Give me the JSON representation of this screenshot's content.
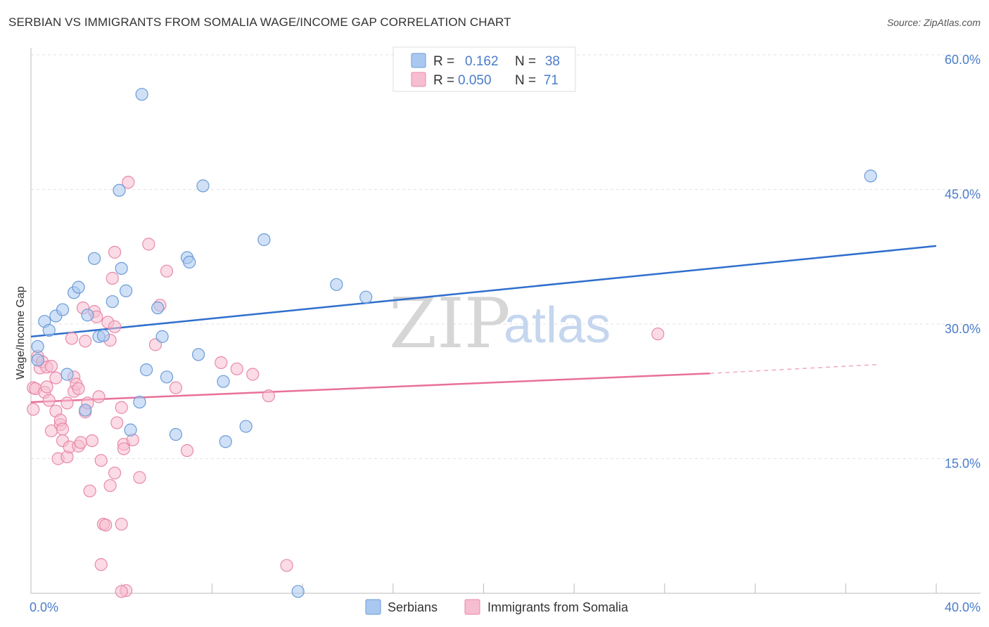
{
  "header": {
    "title": "SERBIAN VS IMMIGRANTS FROM SOMALIA WAGE/INCOME GAP CORRELATION CHART",
    "source": "Source: ZipAtlas.com"
  },
  "watermark": {
    "zip": "ZIP",
    "atlas": "atlas"
  },
  "colors": {
    "serbians_fill": "#a9c8f0",
    "serbians_stroke": "#6a9bd8",
    "serbians_line": "#2f6fcc",
    "somalia_fill": "#f7bdd0",
    "somalia_stroke": "#e889a8",
    "somalia_line": "#e8709a",
    "grid": "#e2e2e2",
    "axis_text": "#4a7cc9"
  },
  "legend": {
    "rows": [
      {
        "r_label": "R =",
        "r_value": "0.162",
        "n_label": "N =",
        "n_value": "38"
      },
      {
        "r_label": "R =",
        "r_value": "0.050",
        "n_label": "N =",
        "n_value": "71"
      }
    ]
  },
  "bottom_legend": {
    "serbians": "Serbians",
    "somalia": "Immigrants from Somalia"
  },
  "chart_data": {
    "type": "scatter",
    "title": "SERBIAN VS IMMIGRANTS FROM SOMALIA WAGE/INCOME GAP CORRELATION CHART",
    "xlabel": "",
    "ylabel": "Wage/Income Gap",
    "xlim": [
      0,
      40
    ],
    "ylim": [
      0,
      60
    ],
    "x_tick_labels": [
      {
        "value": 0,
        "label": "0.0%"
      },
      {
        "value": 40,
        "label": "40.0%"
      }
    ],
    "y_tick_labels": [
      {
        "value": 15,
        "label": "15.0%"
      },
      {
        "value": 30,
        "label": "30.0%"
      },
      {
        "value": 45,
        "label": "45.0%"
      },
      {
        "value": 60,
        "label": "60.0%"
      }
    ],
    "x_minor_ticks": [
      0,
      4,
      8,
      12,
      16,
      20,
      24,
      28,
      32,
      36,
      40
    ],
    "grid": true,
    "series": [
      {
        "name": "Serbians",
        "points": [
          [
            0.3,
            27.5
          ],
          [
            0.3,
            26.0
          ],
          [
            0.6,
            30.3
          ],
          [
            0.8,
            29.3
          ],
          [
            1.1,
            30.9
          ],
          [
            1.4,
            31.6
          ],
          [
            1.6,
            24.4
          ],
          [
            1.9,
            33.5
          ],
          [
            2.1,
            34.1
          ],
          [
            2.5,
            31.0
          ],
          [
            2.8,
            37.3
          ],
          [
            3.0,
            28.6
          ],
          [
            3.2,
            28.7
          ],
          [
            3.6,
            32.5
          ],
          [
            3.9,
            44.9
          ],
          [
            4.0,
            36.2
          ],
          [
            4.2,
            33.7
          ],
          [
            4.4,
            18.2
          ],
          [
            4.8,
            21.3
          ],
          [
            4.9,
            55.6
          ],
          [
            5.1,
            24.9
          ],
          [
            5.6,
            31.8
          ],
          [
            5.8,
            28.6
          ],
          [
            6.0,
            24.1
          ],
          [
            6.4,
            17.7
          ],
          [
            6.9,
            37.4
          ],
          [
            7.0,
            36.9
          ],
          [
            7.4,
            26.6
          ],
          [
            7.6,
            45.4
          ],
          [
            8.5,
            23.6
          ],
          [
            8.6,
            16.9
          ],
          [
            9.5,
            18.6
          ],
          [
            10.3,
            39.4
          ],
          [
            11.8,
            0.2
          ],
          [
            13.5,
            34.4
          ],
          [
            14.8,
            33.0
          ],
          [
            37.1,
            46.5
          ],
          [
            2.4,
            20.4
          ]
        ],
        "trend": {
          "x": [
            0,
            40
          ],
          "y": [
            28.6,
            38.7
          ]
        }
      },
      {
        "name": "Immigrants from Somalia",
        "points": [
          [
            0.1,
            22.9
          ],
          [
            0.1,
            20.5
          ],
          [
            0.2,
            22.8
          ],
          [
            0.3,
            26.4
          ],
          [
            0.4,
            25.1
          ],
          [
            0.5,
            25.8
          ],
          [
            0.6,
            22.4
          ],
          [
            0.7,
            25.2
          ],
          [
            0.7,
            23.0
          ],
          [
            0.8,
            21.5
          ],
          [
            0.9,
            25.3
          ],
          [
            0.9,
            18.1
          ],
          [
            1.1,
            24.0
          ],
          [
            1.1,
            20.3
          ],
          [
            1.2,
            15.0
          ],
          [
            1.3,
            18.8
          ],
          [
            1.3,
            19.3
          ],
          [
            1.4,
            18.3
          ],
          [
            1.4,
            17.0
          ],
          [
            1.6,
            21.2
          ],
          [
            1.6,
            15.2
          ],
          [
            1.7,
            16.3
          ],
          [
            1.8,
            28.4
          ],
          [
            1.9,
            24.1
          ],
          [
            1.9,
            22.5
          ],
          [
            2.0,
            23.3
          ],
          [
            2.1,
            22.8
          ],
          [
            2.1,
            16.4
          ],
          [
            2.2,
            16.8
          ],
          [
            2.3,
            31.8
          ],
          [
            2.4,
            20.2
          ],
          [
            2.4,
            28.1
          ],
          [
            2.5,
            21.2
          ],
          [
            2.6,
            11.4
          ],
          [
            2.7,
            17.0
          ],
          [
            2.8,
            31.4
          ],
          [
            2.9,
            30.8
          ],
          [
            3.0,
            21.9
          ],
          [
            3.1,
            3.2
          ],
          [
            3.1,
            14.8
          ],
          [
            3.2,
            7.7
          ],
          [
            3.3,
            7.6
          ],
          [
            3.4,
            30.2
          ],
          [
            3.5,
            28.2
          ],
          [
            3.5,
            12.0
          ],
          [
            3.6,
            35.1
          ],
          [
            3.7,
            29.7
          ],
          [
            3.7,
            13.4
          ],
          [
            3.7,
            38.0
          ],
          [
            3.8,
            19.0
          ],
          [
            4.0,
            20.7
          ],
          [
            4.0,
            7.7
          ],
          [
            4.1,
            16.6
          ],
          [
            4.1,
            16.1
          ],
          [
            4.2,
            0.3
          ],
          [
            4.3,
            45.8
          ],
          [
            4.5,
            17.1
          ],
          [
            4.8,
            12.9
          ],
          [
            5.2,
            38.9
          ],
          [
            5.5,
            27.7
          ],
          [
            5.7,
            32.1
          ],
          [
            6.0,
            35.9
          ],
          [
            6.4,
            22.9
          ],
          [
            6.9,
            15.9
          ],
          [
            8.4,
            25.7
          ],
          [
            9.1,
            25.0
          ],
          [
            9.8,
            24.4
          ],
          [
            10.5,
            22.0
          ],
          [
            11.3,
            3.1
          ],
          [
            27.7,
            28.9
          ],
          [
            4.0,
            0.2
          ]
        ],
        "trend": {
          "x": [
            0,
            30.0
          ],
          "y": [
            21.3,
            24.5
          ]
        },
        "trend_dashed": {
          "x": [
            30.0,
            37.5
          ],
          "y": [
            24.5,
            25.5
          ]
        }
      }
    ]
  }
}
